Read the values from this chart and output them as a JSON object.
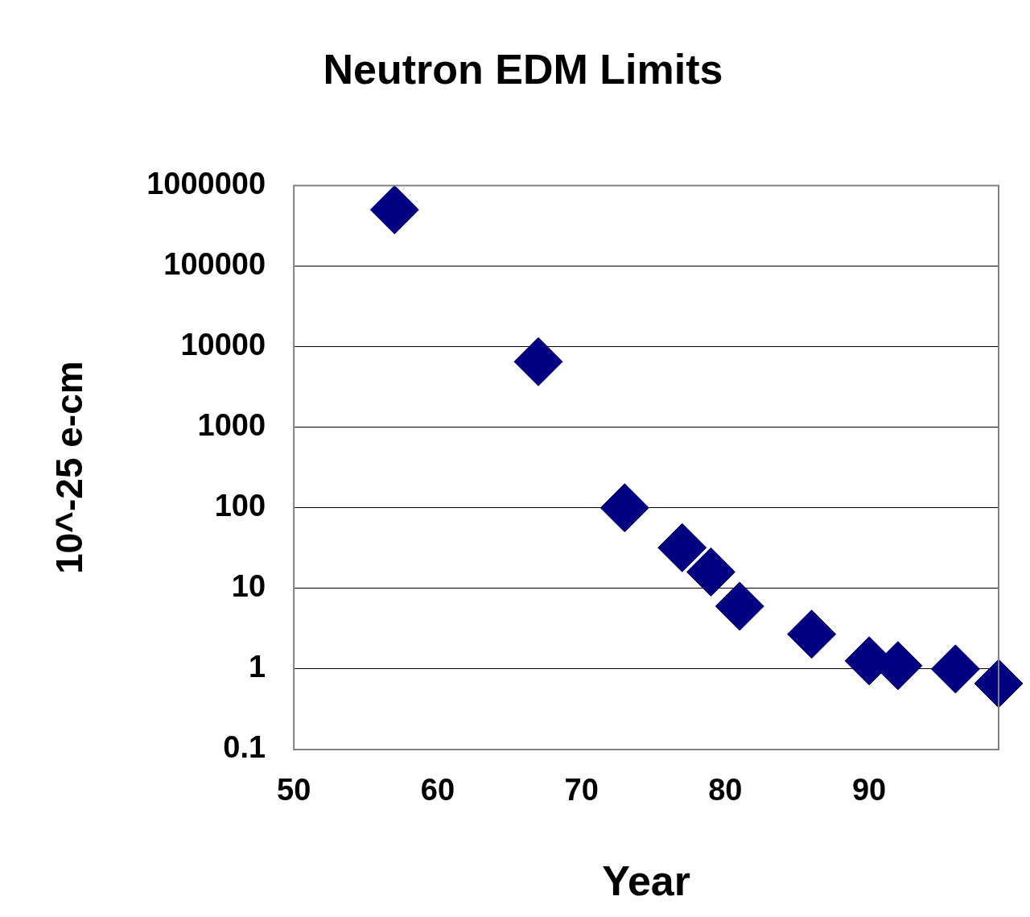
{
  "chart_data": {
    "type": "scatter",
    "title": "Neutron EDM Limits",
    "xlabel": "Year",
    "ylabel": "10^-25 e-cm",
    "x": [
      57,
      67,
      73,
      77,
      79,
      81,
      86,
      90,
      92,
      96,
      99
    ],
    "series": [
      {
        "color": "#000080",
        "values": [
          500000,
          6500,
          100,
          32,
          16,
          6,
          2.7,
          1.26,
          1.1,
          1.0,
          0.66
        ]
      }
    ],
    "xlim": [
      50,
      99
    ],
    "xticks": [
      50,
      60,
      70,
      80,
      90
    ],
    "ylim": [
      0.1,
      1000000
    ],
    "yticks": [
      0.1,
      1,
      10,
      100,
      1000,
      10000,
      100000,
      1000000
    ],
    "log": "y",
    "grid": "y",
    "marker": "diamond",
    "legend": false
  }
}
